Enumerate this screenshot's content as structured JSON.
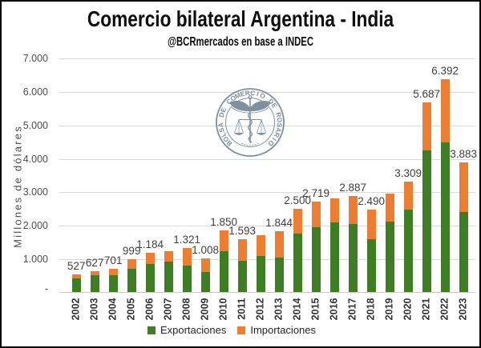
{
  "title": "Comercio bilateral Argentina - India",
  "subtitle": "@BCRmercados en base a INDEC",
  "y_axis": {
    "title": "Millones de dólares",
    "ticks": [
      {
        "v": 7000,
        "label": "7.000"
      },
      {
        "v": 6000,
        "label": "6.000"
      },
      {
        "v": 5000,
        "label": "5.000"
      },
      {
        "v": 4000,
        "label": "4.000"
      },
      {
        "v": 3000,
        "label": "3.000"
      },
      {
        "v": 2000,
        "label": "2.000"
      },
      {
        "v": 1000,
        "label": "1.000"
      },
      {
        "v": 0,
        "label": "-"
      }
    ]
  },
  "legend": [
    {
      "label": "Exportaciones",
      "color": "#3E7D23"
    },
    {
      "label": "Importaciones",
      "color": "#ED7D31"
    }
  ],
  "watermark": {
    "text": "BOLSA DE COMERCIO DE ROSARIO",
    "color": "#5f7486"
  },
  "chart_data": {
    "type": "bar",
    "stacked": true,
    "title": "Comercio bilateral Argentina - India",
    "subtitle": "@BCRmercados en base a INDEC",
    "ylabel": "Millones de dólares",
    "ylim": [
      0,
      7000
    ],
    "grid": "horizontal",
    "legend_position": "bottom",
    "categories": [
      "2002",
      "2003",
      "2004",
      "2005",
      "2006",
      "2007",
      "2008",
      "2009",
      "2010",
      "2011",
      "2012",
      "2013",
      "2014",
      "2015",
      "2016",
      "2017",
      "2018",
      "2019",
      "2020",
      "2021",
      "2022",
      "2023"
    ],
    "series": [
      {
        "name": "Exportaciones",
        "color": "#3E7D23",
        "values": [
          420,
          510,
          510,
          710,
          855,
          910,
          790,
          615,
          1230,
          950,
          1095,
          1041,
          1760,
          1952,
          2100,
          2048,
          1592,
          2120,
          2479,
          4254,
          4494,
          2407
        ]
      },
      {
        "name": "Importaciones",
        "color": "#ED7D31",
        "values": [
          107,
          117,
          191,
          289,
          329,
          320,
          531,
          393,
          620,
          643,
          615,
          803,
          740,
          767,
          715,
          839,
          898,
          830,
          830,
          1433,
          1898,
          1476
        ]
      }
    ],
    "totals": [
      527,
      627,
      701,
      999,
      1184,
      1230,
      1321,
      1008,
      1850,
      1593,
      1710,
      1844,
      2500,
      2719,
      2815,
      2887,
      2490,
      2950,
      3309,
      5687,
      6392,
      3883
    ],
    "total_labels": [
      "527",
      "627",
      "701",
      "999",
      "1.184",
      null,
      "1.321",
      "1.008",
      "1.850",
      "1.593",
      null,
      "1.844",
      "2.500",
      "2.719",
      null,
      "2.887",
      "2.490",
      null,
      "3.309",
      "5.687",
      "6.392",
      "3.883"
    ]
  }
}
